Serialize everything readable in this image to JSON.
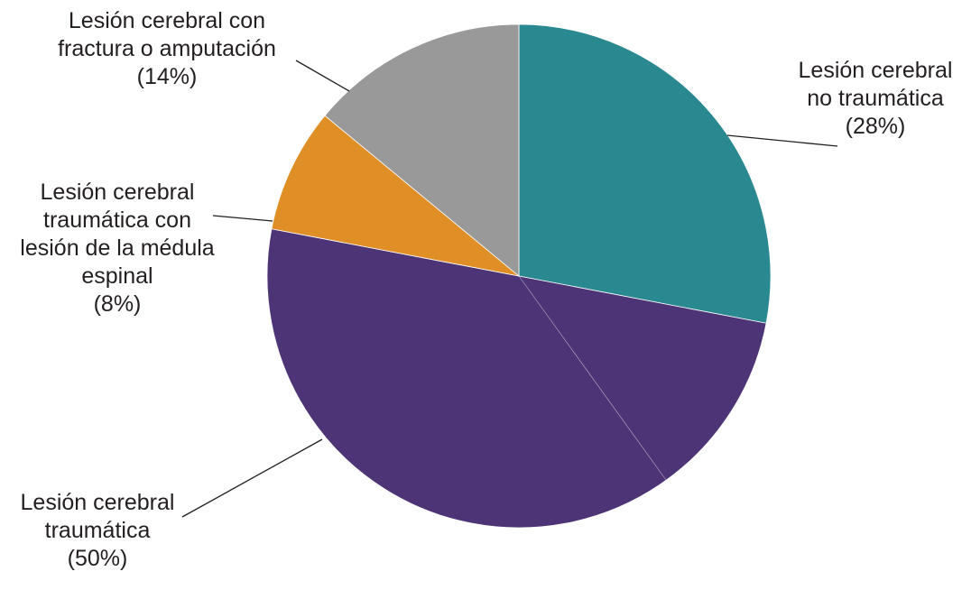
{
  "chart_data": {
    "type": "pie",
    "title": "",
    "start_angle_deg": 0,
    "direction": "clockwise",
    "slices": [
      {
        "label_lines": [
          "Lesión cerebral",
          "no traumática"
        ],
        "value": 28,
        "value_label": "(28%)",
        "color": "#2a8891"
      },
      {
        "label_lines": [
          "Lesión cerebral",
          "traumática"
        ],
        "value": 50,
        "value_label": "(50%)",
        "color": "#4d3476"
      },
      {
        "label_lines": [
          "Lesión cerebral",
          "traumática con",
          "lesión de la médula",
          "espinal"
        ],
        "value": 8,
        "value_label": "(8%)",
        "color": "#e08f27"
      },
      {
        "label_lines": [
          "Lesión cerebral con",
          "fractura o amputación"
        ],
        "value": 14,
        "value_label": "(14%)",
        "color": "#999999"
      }
    ]
  }
}
